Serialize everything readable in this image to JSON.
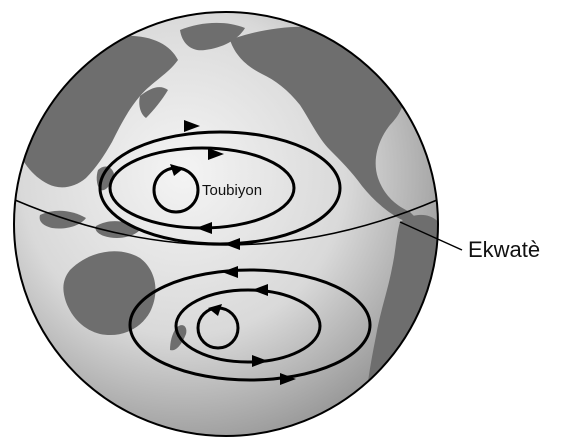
{
  "labels": {
    "cyclone": "Toubiyon",
    "equator": "Ekwatè"
  },
  "colors": {
    "ocean_light": "#f2f2f2",
    "ocean_dark": "#9a9a9a",
    "land": "#6e6e6e",
    "stroke": "#000000"
  }
}
